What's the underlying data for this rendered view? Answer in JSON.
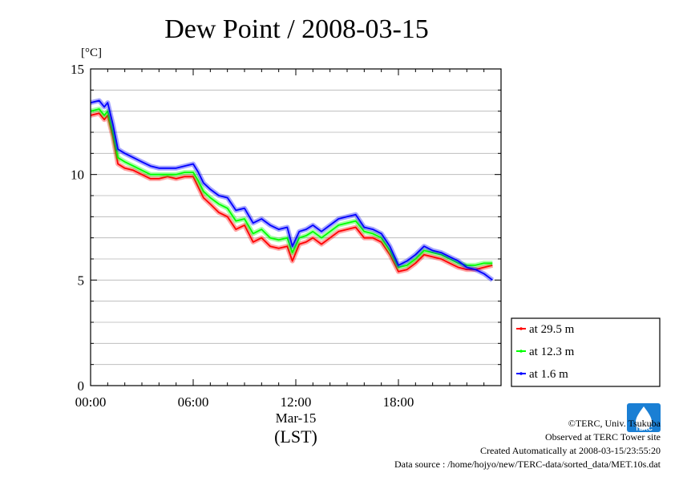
{
  "chart_data": {
    "type": "line",
    "title": "Dew Point / 2008-03-15",
    "ylabel": "[°C]",
    "xlabel": "(LST)",
    "x_date_label": "Mar-15",
    "x_unit": "hour",
    "xlim": [
      0,
      24
    ],
    "ylim": [
      0,
      15
    ],
    "y_ticks": [
      0,
      5,
      10,
      15
    ],
    "y_tick_labels": [
      "0",
      "5",
      "10",
      "15"
    ],
    "x_ticks": [
      0,
      6,
      12,
      18
    ],
    "x_tick_labels": [
      "00:00",
      "06:00",
      "12:00",
      "18:00"
    ],
    "grid": true,
    "legend_position": "lower-right outside",
    "x": [
      0.0,
      0.5,
      0.8,
      1.0,
      1.3,
      1.6,
      2.0,
      2.5,
      3.0,
      3.5,
      4.0,
      4.5,
      5.0,
      5.5,
      6.0,
      6.3,
      6.6,
      7.0,
      7.5,
      8.0,
      8.5,
      9.0,
      9.5,
      10.0,
      10.5,
      11.0,
      11.5,
      11.8,
      12.2,
      12.6,
      13.0,
      13.5,
      14.0,
      14.5,
      15.0,
      15.5,
      16.0,
      16.5,
      17.0,
      17.5,
      18.0,
      18.5,
      19.0,
      19.5,
      20.0,
      20.5,
      21.0,
      21.5,
      22.0,
      22.5,
      23.0,
      23.5
    ],
    "series": [
      {
        "name": "at 29.5 m",
        "color": "#ff0000",
        "values": [
          12.8,
          12.9,
          12.6,
          12.8,
          11.8,
          10.5,
          10.3,
          10.2,
          10.0,
          9.8,
          9.8,
          9.9,
          9.8,
          9.9,
          9.9,
          9.4,
          8.9,
          8.6,
          8.2,
          8.0,
          7.4,
          7.6,
          6.8,
          7.0,
          6.6,
          6.5,
          6.6,
          5.9,
          6.7,
          6.8,
          7.0,
          6.7,
          7.0,
          7.3,
          7.4,
          7.5,
          7.0,
          7.0,
          6.8,
          6.2,
          5.4,
          5.5,
          5.8,
          6.2,
          6.1,
          6.0,
          5.8,
          5.6,
          5.5,
          5.5,
          5.6,
          5.7
        ]
      },
      {
        "name": "at 12.3 m",
        "color": "#00ff00",
        "values": [
          13.0,
          13.1,
          12.8,
          13.0,
          12.0,
          10.8,
          10.6,
          10.4,
          10.2,
          10.0,
          10.0,
          10.0,
          10.0,
          10.1,
          10.1,
          9.7,
          9.2,
          8.9,
          8.6,
          8.4,
          7.8,
          7.9,
          7.2,
          7.4,
          7.0,
          6.9,
          7.0,
          6.3,
          7.0,
          7.1,
          7.3,
          7.0,
          7.3,
          7.6,
          7.7,
          7.8,
          7.3,
          7.2,
          7.0,
          6.4,
          5.6,
          5.7,
          6.0,
          6.4,
          6.3,
          6.2,
          6.0,
          5.8,
          5.7,
          5.7,
          5.8,
          5.8
        ]
      },
      {
        "name": "at 1.6 m",
        "color": "#0000ff",
        "values": [
          13.4,
          13.5,
          13.2,
          13.4,
          12.4,
          11.2,
          11.0,
          10.8,
          10.6,
          10.4,
          10.3,
          10.3,
          10.3,
          10.4,
          10.5,
          10.1,
          9.6,
          9.3,
          9.0,
          8.9,
          8.3,
          8.4,
          7.7,
          7.9,
          7.6,
          7.4,
          7.5,
          6.6,
          7.3,
          7.4,
          7.6,
          7.3,
          7.6,
          7.9,
          8.0,
          8.1,
          7.5,
          7.4,
          7.2,
          6.6,
          5.7,
          5.9,
          6.2,
          6.6,
          6.4,
          6.3,
          6.1,
          5.9,
          5.6,
          5.5,
          5.3,
          5.0
        ]
      }
    ]
  },
  "legend": {
    "items": [
      {
        "label": "at 29.5 m",
        "color": "#ff0000"
      },
      {
        "label": "at 12.3 m",
        "color": "#00ff00"
      },
      {
        "label": "at 1.6 m",
        "color": "#0000ff"
      }
    ]
  },
  "logo": {
    "text": "TERC",
    "color": "#1a7fd4"
  },
  "credits": {
    "copyright": "©TERC, Univ. Tsukuba",
    "site": "Observed at TERC Tower site",
    "created": "Created Automatically at 2008-03-15/23:55:20",
    "source": "Data source : /home/hojyo/new/TERC-data/sorted_data/MET.10s.dat"
  }
}
